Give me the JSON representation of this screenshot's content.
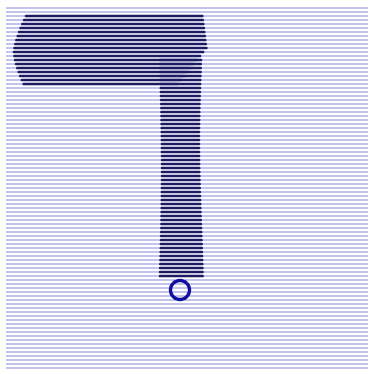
{
  "colors": {
    "background": "#ffffff",
    "line_light": "#8a8ad6",
    "line_dark": "#1a1a66",
    "marker": "#1010a0"
  },
  "pattern": {
    "kind": "horizontal line grating with a darker T-shaped figure",
    "marker_icon": "ring-icon"
  }
}
